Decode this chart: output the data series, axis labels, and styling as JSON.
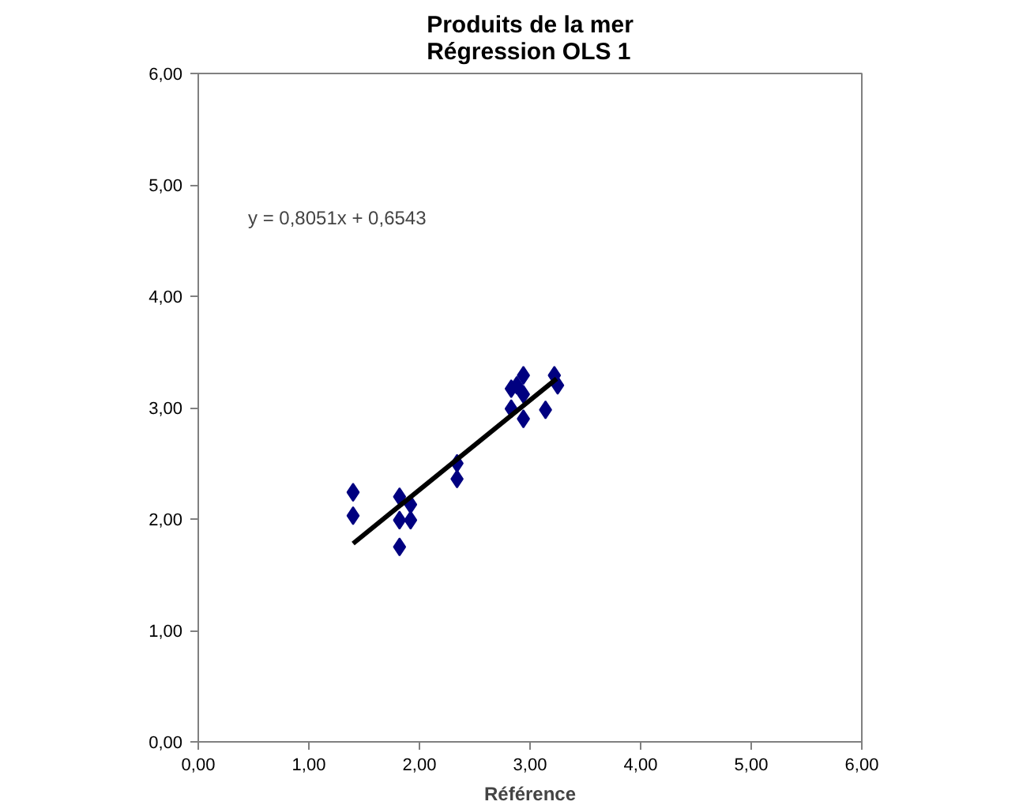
{
  "chart_data": {
    "type": "scatter",
    "title": "Produits de la mer\nRégression OLS 1",
    "xlabel": "Référence",
    "xlim": [
      0,
      6
    ],
    "ylim": [
      0,
      6
    ],
    "xticks": [
      {
        "value": 0,
        "label": "0,00"
      },
      {
        "value": 1,
        "label": "1,00"
      },
      {
        "value": 2,
        "label": "2,00"
      },
      {
        "value": 3,
        "label": "3,00"
      },
      {
        "value": 4,
        "label": "4,00"
      },
      {
        "value": 5,
        "label": "5,00"
      },
      {
        "value": 6,
        "label": "6,00"
      }
    ],
    "yticks": [
      {
        "value": 0,
        "label": "0,00"
      },
      {
        "value": 1,
        "label": "1,00"
      },
      {
        "value": 2,
        "label": "2,00"
      },
      {
        "value": 3,
        "label": "3,00"
      },
      {
        "value": 4,
        "label": "4,00"
      },
      {
        "value": 5,
        "label": "5,00"
      },
      {
        "value": 6,
        "label": "6,00"
      }
    ],
    "grid": false,
    "marker": "diamond",
    "series": [
      {
        "color": "#000080",
        "x": [
          1.4,
          1.4,
          1.82,
          1.92,
          1.82,
          1.92,
          1.82,
          2.34,
          2.34,
          2.83,
          2.94,
          2.94,
          2.83,
          2.94,
          3.22,
          3.25,
          3.14,
          2.88
        ],
        "values": [
          2.24,
          2.03,
          2.2,
          2.13,
          1.99,
          1.99,
          1.75,
          2.5,
          2.36,
          3.17,
          3.29,
          3.12,
          2.99,
          2.9,
          3.29,
          3.2,
          2.98,
          3.2
        ]
      },
      {
        "type": "line",
        "marker": "none",
        "color": "#000000",
        "x": [
          1.4,
          3.24
        ],
        "values": [
          1.78,
          3.26
        ]
      }
    ],
    "annotations": [
      "y = 0,8051x + 0,6543"
    ]
  }
}
